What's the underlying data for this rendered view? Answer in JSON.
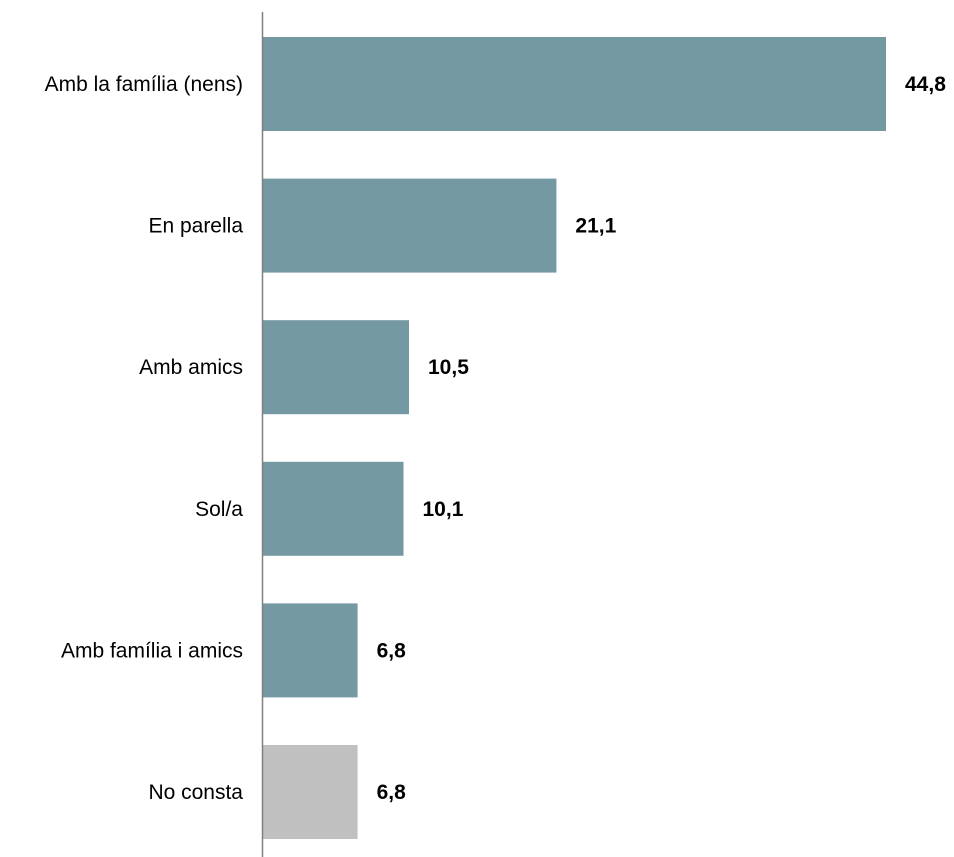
{
  "chart_data": {
    "type": "bar",
    "orientation": "horizontal",
    "categories": [
      "Amb la família (nens)",
      "En parella",
      "Amb amics",
      "Sol/a",
      "Amb família i amics",
      "No consta"
    ],
    "values": [
      44.8,
      21.1,
      10.5,
      10.1,
      6.8,
      6.8
    ],
    "value_labels": [
      "44,8",
      "21,1",
      "10,5",
      "10,1",
      "6,8",
      "6,8"
    ],
    "bar_colors": [
      "#7599a3",
      "#7599a3",
      "#7599a3",
      "#7599a3",
      "#7599a3",
      "#c0c0c0"
    ],
    "axis_color": "#808080",
    "title": "",
    "xlabel": "",
    "ylabel": "",
    "grid": false,
    "legend": "none"
  }
}
